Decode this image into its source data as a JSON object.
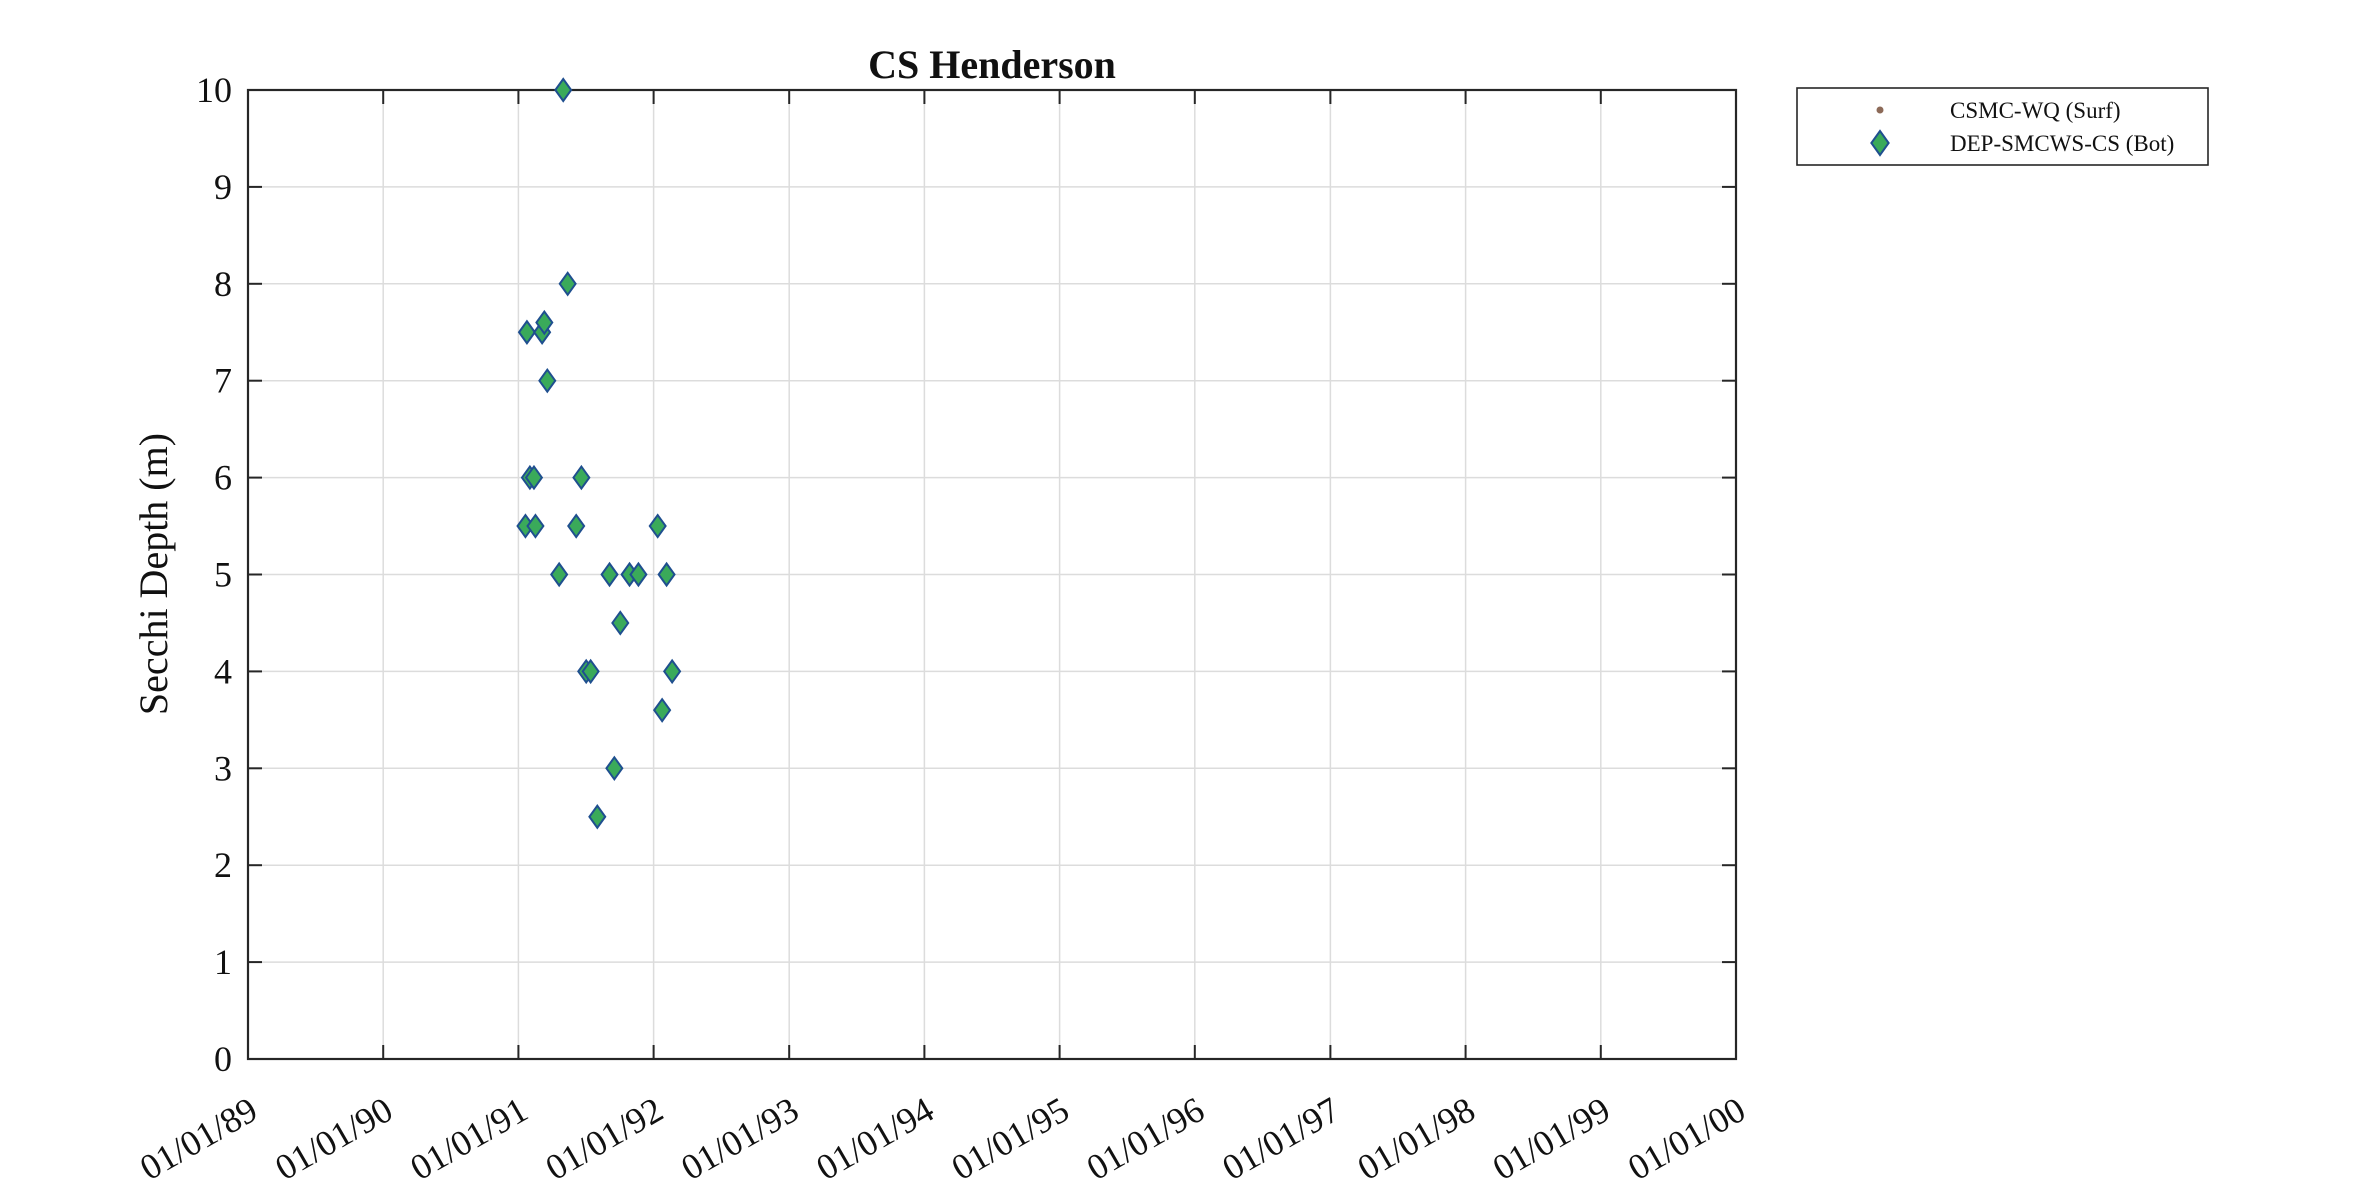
{
  "chart_data": {
    "type": "scatter",
    "title": "CS Henderson",
    "xlabel": "",
    "ylabel": "Secchi Depth (m)",
    "x_axis_type": "date",
    "xlim": [
      "1989-01-01",
      "2000-01-01"
    ],
    "ylim": [
      0,
      10
    ],
    "x_tick_labels": [
      "01/01/89",
      "01/01/90",
      "01/01/91",
      "01/01/92",
      "01/01/93",
      "01/01/94",
      "01/01/95",
      "01/01/96",
      "01/01/97",
      "01/01/98",
      "01/01/99",
      "01/01/00"
    ],
    "y_tick_labels": [
      "0",
      "1",
      "2",
      "3",
      "4",
      "5",
      "6",
      "7",
      "8",
      "9",
      "10"
    ],
    "grid": true,
    "legend_position": "outside-top-right",
    "series": [
      {
        "name": "CSMC-WQ (Surf)",
        "marker": "dot",
        "color": "#8c6a58",
        "points": []
      },
      {
        "name": "DEP-SMCWS-CS (Bot)",
        "marker": "diamond",
        "fill_color": "#3aaa5a",
        "edge_color": "#1f4f8f",
        "points": [
          {
            "x": "1991-01-20",
            "y": 5.5
          },
          {
            "x": "1991-01-24",
            "y": 7.5
          },
          {
            "x": "1991-02-01",
            "y": 6.0
          },
          {
            "x": "1991-02-12",
            "y": 6.0
          },
          {
            "x": "1991-02-16",
            "y": 5.5
          },
          {
            "x": "1991-03-06",
            "y": 7.5
          },
          {
            "x": "1991-03-12",
            "y": 7.6
          },
          {
            "x": "1991-03-20",
            "y": 7.0
          },
          {
            "x": "1991-04-21",
            "y": 5.0
          },
          {
            "x": "1991-05-02",
            "y": 10.0
          },
          {
            "x": "1991-05-14",
            "y": 8.0
          },
          {
            "x": "1991-06-06",
            "y": 5.5
          },
          {
            "x": "1991-06-20",
            "y": 6.0
          },
          {
            "x": "1991-07-03",
            "y": 4.0
          },
          {
            "x": "1991-07-15",
            "y": 4.0
          },
          {
            "x": "1991-08-02",
            "y": 2.5
          },
          {
            "x": "1991-09-04",
            "y": 5.0
          },
          {
            "x": "1991-09-17",
            "y": 3.0
          },
          {
            "x": "1991-10-03",
            "y": 4.5
          },
          {
            "x": "1991-10-28",
            "y": 5.0
          },
          {
            "x": "1991-11-21",
            "y": 5.0
          },
          {
            "x": "1992-01-12",
            "y": 5.5
          },
          {
            "x": "1992-01-24",
            "y": 3.6
          },
          {
            "x": "1992-02-05",
            "y": 5.0
          },
          {
            "x": "1992-02-20",
            "y": 4.0
          }
        ]
      }
    ]
  }
}
